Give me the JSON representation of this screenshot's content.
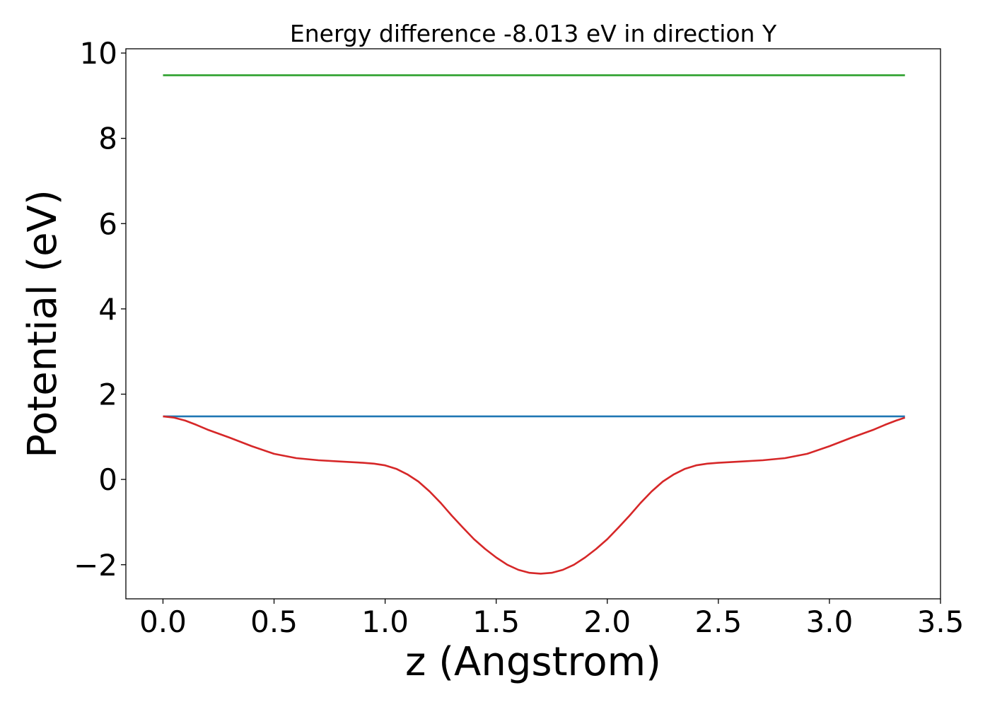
{
  "chart_data": {
    "type": "line",
    "title": "Energy difference -8.013 eV in direction Y",
    "xlabel": "z (Angstrom)",
    "ylabel": "Potential (eV)",
    "xlim": [
      -0.167,
      3.5
    ],
    "ylim": [
      -2.8,
      10.1
    ],
    "xticks": [
      0.0,
      0.5,
      1.0,
      1.5,
      2.0,
      2.5,
      3.0,
      3.5
    ],
    "xtick_labels": [
      "0.0",
      "0.5",
      "1.0",
      "1.5",
      "2.0",
      "2.5",
      "3.0",
      "3.5"
    ],
    "yticks": [
      -2,
      0,
      2,
      4,
      6,
      8,
      10
    ],
    "ytick_labels": [
      "−2",
      "0",
      "2",
      "4",
      "6",
      "8",
      "10"
    ],
    "grid": false,
    "series": [
      {
        "color": "#2ca02c",
        "x": [
          0.0,
          3.34
        ],
        "y": [
          9.48,
          9.48
        ]
      },
      {
        "color": "#1f77b4",
        "x": [
          0.0,
          3.34
        ],
        "y": [
          1.48,
          1.48
        ]
      },
      {
        "color": "#d62728",
        "x": [
          0.0,
          0.05,
          0.1,
          0.15,
          0.2,
          0.3,
          0.4,
          0.5,
          0.6,
          0.7,
          0.8,
          0.9,
          0.95,
          1.0,
          1.05,
          1.1,
          1.15,
          1.2,
          1.25,
          1.3,
          1.35,
          1.4,
          1.45,
          1.5,
          1.55,
          1.6,
          1.65,
          1.7,
          1.75,
          1.8,
          1.85,
          1.9,
          1.95,
          2.0,
          2.05,
          2.1,
          2.15,
          2.2,
          2.25,
          2.3,
          2.35,
          2.4,
          2.45,
          2.5,
          2.6,
          2.7,
          2.8,
          2.9,
          3.0,
          3.1,
          3.2,
          3.25,
          3.3,
          3.34
        ],
        "y": [
          1.48,
          1.45,
          1.38,
          1.28,
          1.17,
          0.98,
          0.78,
          0.6,
          0.5,
          0.45,
          0.42,
          0.39,
          0.37,
          0.33,
          0.25,
          0.12,
          -0.05,
          -0.28,
          -0.55,
          -0.85,
          -1.13,
          -1.4,
          -1.63,
          -1.83,
          -2.0,
          -2.12,
          -2.19,
          -2.21,
          -2.19,
          -2.12,
          -2.0,
          -1.83,
          -1.63,
          -1.4,
          -1.13,
          -0.85,
          -0.55,
          -0.28,
          -0.05,
          0.12,
          0.25,
          0.33,
          0.37,
          0.39,
          0.42,
          0.45,
          0.5,
          0.6,
          0.78,
          0.98,
          1.17,
          1.28,
          1.38,
          1.45
        ]
      }
    ]
  }
}
